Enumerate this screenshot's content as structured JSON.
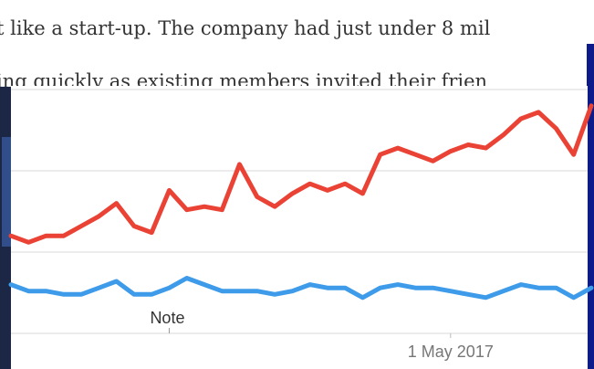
{
  "article_text": [
    "t like a start-up. The company had just under 8 mil",
    "ing quickly as existing members invited their frien"
  ],
  "chart_data": {
    "type": "line",
    "x": [
      0,
      1,
      2,
      3,
      4,
      5,
      6,
      7,
      8,
      9,
      10,
      11,
      12,
      13,
      14,
      15,
      16,
      17,
      18,
      19,
      20,
      21,
      22,
      23,
      24,
      25,
      26,
      27,
      28,
      29,
      30,
      31,
      32,
      33
    ],
    "xlim": [
      0,
      33
    ],
    "xticks": [
      {
        "value": 25,
        "label": "1 May 2017"
      }
    ],
    "ylim": [
      0,
      75
    ],
    "yticks": [
      0,
      25,
      50,
      75
    ],
    "grid": true,
    "annotations": [
      {
        "text": "Note",
        "x": 9
      }
    ],
    "series": [
      {
        "color": "#ea4335",
        "values": [
          30,
          28,
          30,
          30,
          33,
          36,
          40,
          33,
          31,
          44,
          38,
          39,
          38,
          52,
          42,
          39,
          43,
          46,
          44,
          46,
          43,
          55,
          57,
          55,
          53,
          56,
          58,
          57,
          61,
          66,
          68,
          63,
          55,
          70
        ]
      },
      {
        "color": "#3d9be9",
        "values": [
          15,
          13,
          13,
          12,
          12,
          14,
          16,
          12,
          12,
          14,
          17,
          15,
          13,
          13,
          13,
          12,
          13,
          15,
          14,
          14,
          11,
          14,
          15,
          14,
          14,
          13,
          12,
          11,
          13,
          15,
          14,
          14,
          11,
          14
        ]
      }
    ]
  }
}
